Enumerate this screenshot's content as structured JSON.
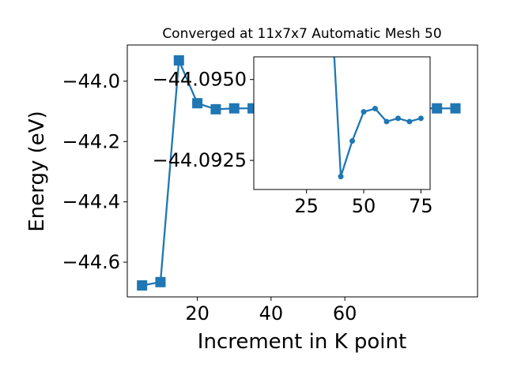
{
  "chart_data": [
    {
      "type": "line",
      "title": "Converged at 11x7x7 Automatic Mesh 50",
      "xlabel": "Increment in K point",
      "ylabel": "Energy (eV)",
      "xlim": [
        1,
        96
      ],
      "ylim": [
        -44.715,
        -43.88
      ],
      "xticks": [
        20,
        40,
        60
      ],
      "yticks": [
        -44.6,
        -44.4,
        -44.2,
        -44.0
      ],
      "xtick_labels": [
        "20",
        "40",
        "60"
      ],
      "ytick_labels": [
        "−44.6",
        "−44.4",
        "−44.2",
        "−44.0"
      ],
      "grid": false,
      "marker": "square",
      "color": "#1f77b4",
      "series": [
        {
          "x": [
            5,
            10,
            15,
            20,
            25,
            30,
            35,
            40,
            45,
            50,
            55,
            60,
            65,
            70,
            75,
            80,
            85,
            90
          ],
          "y": [
            -44.677,
            -44.666,
            -43.931,
            -44.073,
            -44.093,
            -44.09,
            -44.09,
            -44.092,
            -44.092,
            -44.091,
            -44.091,
            -44.09,
            -44.09,
            -44.09,
            -44.09,
            -44.09,
            -44.09,
            -44.09
          ]
        }
      ]
    },
    {
      "type": "line",
      "title": "",
      "xlabel": "",
      "ylabel": "",
      "xlim": [
        2,
        79
      ],
      "ylim": [
        -44.0916,
        -44.0957
      ],
      "xticks": [
        25,
        50,
        75
      ],
      "yticks": [
        -44.095,
        -44.0925
      ],
      "xtick_labels": [
        "25",
        "50",
        "75"
      ],
      "ytick_labels": [
        "−44.0950",
        "−44.0925"
      ],
      "grid": false,
      "marker": "circle",
      "color": "#1f77b4",
      "series": [
        {
          "x": [
            37,
            40,
            45,
            50,
            55,
            60,
            65,
            70,
            75
          ],
          "y": [
            -44.0959,
            -44.092,
            -44.0931,
            -44.094,
            -44.0941,
            -44.0937,
            -44.0938,
            -44.0937,
            -44.0938
          ]
        }
      ]
    }
  ]
}
